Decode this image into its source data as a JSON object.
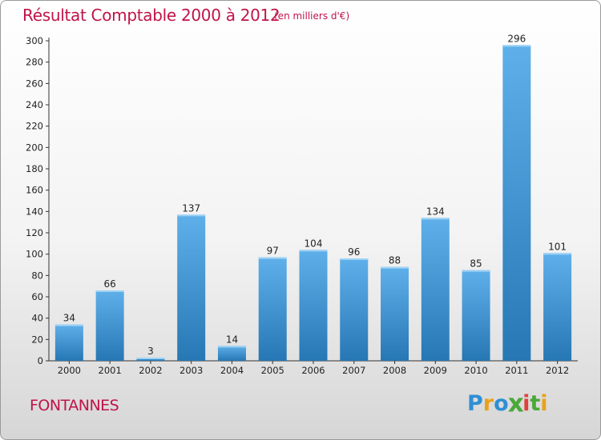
{
  "title": "Résultat Comptable 2000 à 2012",
  "subtitle": "(en milliers d'€)",
  "town": "FONTANNES",
  "logo": {
    "letters": [
      "P",
      "r",
      "o",
      "x",
      "i",
      "t",
      "i"
    ],
    "colors": [
      "#2f8fd4",
      "#e8a21a",
      "#2f8fd4",
      "#4aa83a",
      "#e0413a",
      "#4aa83a",
      "#e8a21a"
    ]
  },
  "colors": {
    "bar_light": "#5fb0ea",
    "bar_dark": "#2677b4",
    "accent": "#c0144a"
  },
  "chart_data": {
    "type": "bar",
    "categories": [
      "2000",
      "2001",
      "2002",
      "2003",
      "2004",
      "2005",
      "2006",
      "2007",
      "2008",
      "2009",
      "2010",
      "2011",
      "2012"
    ],
    "values": [
      34,
      66,
      3,
      137,
      14,
      97,
      104,
      96,
      88,
      134,
      85,
      296,
      101
    ],
    "ylim": [
      0,
      300
    ],
    "yticks": [
      0,
      20,
      40,
      60,
      80,
      100,
      120,
      140,
      160,
      180,
      200,
      220,
      240,
      260,
      280,
      300
    ],
    "grid": false,
    "data_labels": true
  }
}
